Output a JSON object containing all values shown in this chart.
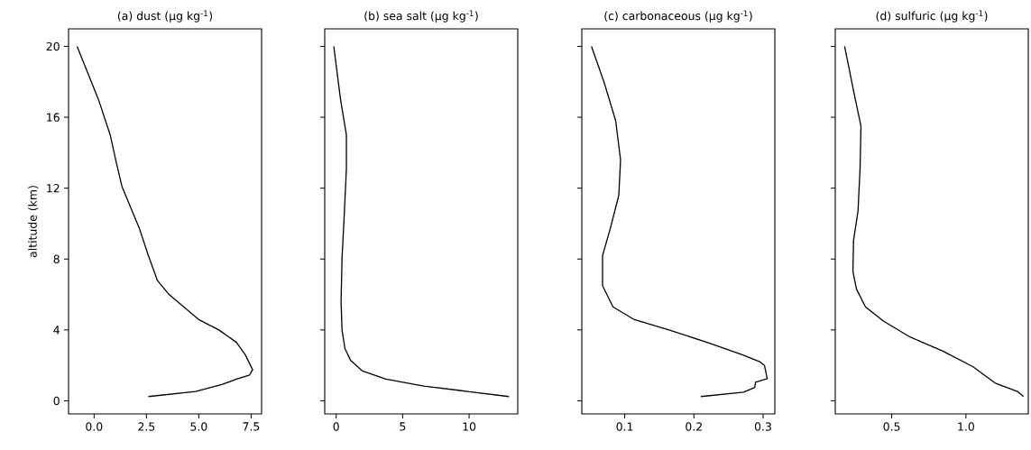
{
  "chart_data": [
    {
      "type": "line",
      "title": "(a) dust (μg kg$^{-1}$)",
      "ylabel": "altitude (km)",
      "xlim": [
        -1.22,
        8.0
      ],
      "ylim": [
        -0.74,
        20.99
      ],
      "xticks": [
        {
          "value": 0,
          "label": "0.0"
        },
        2.5,
        {
          "value": 5,
          "label": "5.0"
        },
        7.5
      ],
      "yticks": [
        0,
        4,
        8,
        12,
        16,
        20
      ],
      "series": [
        {
          "color": "#000000",
          "x": [
            -0.81,
            0.21,
            0.77,
            1.05,
            1.33,
            1.75,
            2.17,
            2.59,
            3.02,
            3.58,
            4.28,
            4.98,
            5.96,
            6.8,
            7.22,
            7.57,
            7.43,
            6.8,
            6.1,
            4.84,
            2.59
          ],
          "values": [
            20.0,
            17.0,
            15.0,
            13.5,
            12.1,
            10.9,
            9.7,
            8.2,
            6.8,
            6.0,
            5.3,
            4.6,
            4.0,
            3.3,
            2.6,
            1.76,
            1.46,
            1.22,
            0.92,
            0.53,
            0.24
          ]
        }
      ]
    },
    {
      "type": "line",
      "title": "(b) sea salt (μg kg$^{-1}$)",
      "tick_labels": "x",
      "xlim": [
        -0.86,
        13.66
      ],
      "ylim": [
        -0.74,
        20.99
      ],
      "xticks": [
        0,
        5,
        10
      ],
      "yticks": [
        0,
        4,
        8,
        12,
        16,
        20
      ],
      "series": [
        {
          "color": "#000000",
          "x": [
            -0.18,
            0.33,
            0.77,
            0.77,
            0.62,
            0.44,
            0.37,
            0.44,
            0.66,
            1.1,
            1.98,
            3.74,
            6.59,
            9.89,
            13.0
          ],
          "values": [
            20.0,
            17.0,
            15.0,
            13.1,
            10.7,
            8.0,
            5.6,
            4.0,
            2.95,
            2.27,
            1.68,
            1.22,
            0.83,
            0.53,
            0.24
          ]
        }
      ]
    },
    {
      "type": "line",
      "title": "(c) carbonaceous (μg kg$^{-1}$)",
      "tick_labels": "x",
      "xlim": [
        0.038,
        0.317
      ],
      "ylim": [
        -0.74,
        20.99
      ],
      "xticks": [
        0.1,
        0.2,
        0.3
      ],
      "yticks": [
        0,
        4,
        8,
        12,
        16,
        20
      ],
      "series": [
        {
          "color": "#000000",
          "x": [
            0.052,
            0.07,
            0.087,
            0.094,
            0.0915,
            0.079,
            0.068,
            0.068,
            0.083,
            0.113,
            0.164,
            0.219,
            0.27,
            0.296,
            0.302,
            0.306,
            0.289,
            0.288,
            0.272,
            0.21
          ],
          "values": [
            20.0,
            18.0,
            15.8,
            13.6,
            11.6,
            9.7,
            8.2,
            6.5,
            5.3,
            4.6,
            4.0,
            3.3,
            2.6,
            2.19,
            2.0,
            1.25,
            1.05,
            0.75,
            0.49,
            0.24
          ]
        }
      ]
    },
    {
      "type": "line",
      "title": "(d) sulfuric (μg kg$^{-1}$)",
      "tick_labels": "x",
      "xlim": [
        0.12,
        1.42
      ],
      "ylim": [
        -0.74,
        20.99
      ],
      "xticks": [
        0.5,
        {
          "value": 1,
          "label": "1.0"
        }
      ],
      "yticks": [
        0,
        4,
        8,
        12,
        16,
        20
      ],
      "series": [
        {
          "color": "#000000",
          "x": [
            0.183,
            0.243,
            0.293,
            0.287,
            0.273,
            0.243,
            0.239,
            0.263,
            0.323,
            0.444,
            0.624,
            0.845,
            1.046,
            1.197,
            1.347,
            1.388
          ],
          "values": [
            20.0,
            17.5,
            15.5,
            13.1,
            10.7,
            9.05,
            7.3,
            6.3,
            5.3,
            4.5,
            3.6,
            2.8,
            1.93,
            1.0,
            0.53,
            0.24
          ]
        }
      ]
    }
  ]
}
